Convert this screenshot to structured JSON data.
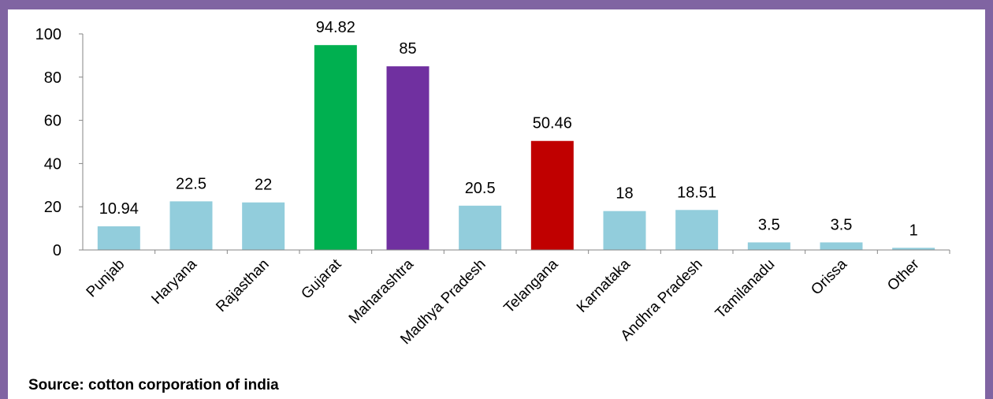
{
  "colors": {
    "frame": "#8064a2",
    "bar_default": "#92cddc",
    "axis": "#868686"
  },
  "chart_data": {
    "type": "bar",
    "title": "",
    "xlabel": "",
    "ylabel": "",
    "ylim": [
      0,
      100
    ],
    "yticks": [
      0,
      20,
      40,
      60,
      80,
      100
    ],
    "grid": false,
    "categories": [
      "Punjab",
      "Haryana",
      "Rajasthan",
      "Gujarat",
      "Maharashtra",
      "Madhya Pradesh",
      "Telangana",
      "Karnataka",
      "Andhra Pradesh",
      "Tamilanadu",
      "Orissa",
      "Other"
    ],
    "values": [
      10.94,
      22.5,
      22,
      94.82,
      85,
      20.5,
      50.46,
      18,
      18.51,
      3.5,
      3.5,
      1
    ],
    "value_labels": [
      "10.94",
      "22.5",
      "22",
      "94.82",
      "85",
      "20.5",
      "50.46",
      "18",
      "18.51",
      "3.5",
      "3.5",
      "1"
    ],
    "bar_colors": [
      "#92cddc",
      "#92cddc",
      "#92cddc",
      "#00b050",
      "#7030a0",
      "#92cddc",
      "#c00000",
      "#92cddc",
      "#92cddc",
      "#92cddc",
      "#92cddc",
      "#92cddc"
    ]
  },
  "source_text": "Source: cotton corporation of india"
}
